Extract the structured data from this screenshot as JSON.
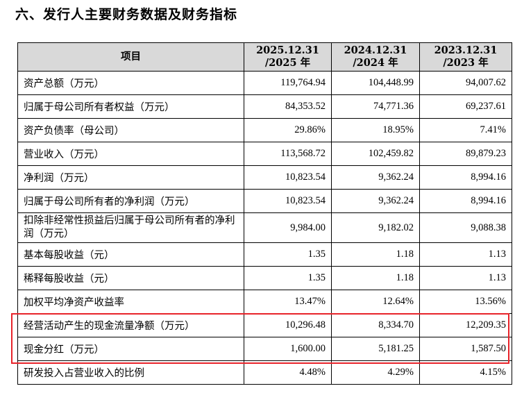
{
  "section_title": "六、发行人主要财务数据及财务指标",
  "table": {
    "header": {
      "item": "项目",
      "col1_line1": "2025.12.31",
      "col1_line2": "/2025 年",
      "col2_line1": "2024.12.31",
      "col2_line2": "/2024 年",
      "col3_line1": "2023.12.31",
      "col3_line2": "/2023 年"
    },
    "rows": [
      {
        "label": "资产总额（万元）",
        "v1": "119,764.94",
        "v2": "104,448.99",
        "v3": "94,007.62"
      },
      {
        "label": "归属于母公司所有者权益（万元）",
        "v1": "84,353.52",
        "v2": "74,771.36",
        "v3": "69,237.61"
      },
      {
        "label": "资产负债率（母公司）",
        "v1": "29.86%",
        "v2": "18.95%",
        "v3": "7.41%"
      },
      {
        "label": "营业收入（万元）",
        "v1": "113,568.72",
        "v2": "102,459.82",
        "v3": "89,879.23"
      },
      {
        "label": "净利润（万元）",
        "v1": "10,823.54",
        "v2": "9,362.24",
        "v3": "8,994.16"
      },
      {
        "label": "归属于母公司所有者的净利润（万元）",
        "v1": "10,823.54",
        "v2": "9,362.24",
        "v3": "8,994.16"
      },
      {
        "label": "扣除非经常性损益后归属于母公司所有者的净利润（万元）",
        "v1": "9,984.00",
        "v2": "9,182.02",
        "v3": "9,088.38"
      },
      {
        "label": "基本每股收益（元）",
        "v1": "1.35",
        "v2": "1.18",
        "v3": "1.13"
      },
      {
        "label": "稀释每股收益（元）",
        "v1": "1.35",
        "v2": "1.18",
        "v3": "1.13"
      },
      {
        "label": "加权平均净资产收益率",
        "v1": "13.47%",
        "v2": "12.64%",
        "v3": "13.56%"
      },
      {
        "label": "经营活动产生的现金流量净额（万元）",
        "v1": "10,296.48",
        "v2": "8,334.70",
        "v3": "12,209.35"
      },
      {
        "label": "现金分红（万元）",
        "v1": "1,600.00",
        "v2": "5,181.25",
        "v3": "1,587.50"
      },
      {
        "label": "研发投入占营业收入的比例",
        "v1": "4.48%",
        "v2": "4.29%",
        "v3": "4.15%"
      }
    ]
  },
  "colors": {
    "header_bg": "#d9d9d9",
    "highlight_border": "#e8232a"
  }
}
